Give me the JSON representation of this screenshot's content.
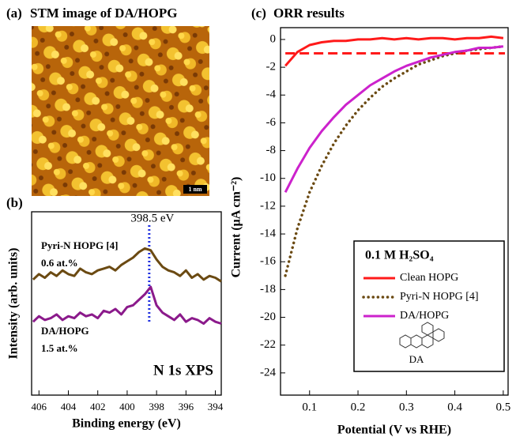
{
  "stm_image": {
    "panel_label": "(a)",
    "title": "STM image of DA/HOPG",
    "scale_label": "1 nm"
  },
  "chart_data": [
    {
      "type": "line",
      "panel_label": "(b)",
      "title": "N 1s XPS",
      "xlabel": "Binding energy (eV)",
      "ylabel": "Intensity (arb. units)",
      "xlim": [
        406.5,
        393.6
      ],
      "ylim": [
        0,
        10
      ],
      "xticks": [
        406,
        404,
        402,
        400,
        398,
        396,
        394
      ],
      "x": [
        406.4,
        406.0,
        405.6,
        405.2,
        404.8,
        404.4,
        404.0,
        403.6,
        403.2,
        402.8,
        402.4,
        402.0,
        401.6,
        401.2,
        400.8,
        400.4,
        400.0,
        399.6,
        399.2,
        398.8,
        398.4,
        398.0,
        397.6,
        397.2,
        396.8,
        396.4,
        396.0,
        395.6,
        395.2,
        394.8,
        394.4,
        394.0,
        393.6
      ],
      "series": [
        {
          "name": "Pyri-N HOPG [4]",
          "note": "0.6 at.%",
          "color": "#6b4a12",
          "style": "solid",
          "values": [
            6.3,
            6.6,
            6.4,
            6.7,
            6.5,
            6.8,
            6.6,
            6.5,
            6.9,
            6.7,
            6.6,
            6.8,
            6.9,
            7.0,
            6.8,
            7.1,
            7.3,
            7.5,
            7.8,
            8.0,
            7.9,
            7.4,
            7.0,
            6.8,
            6.7,
            6.5,
            6.8,
            6.4,
            6.6,
            6.3,
            6.5,
            6.4,
            6.2
          ]
        },
        {
          "name": "DA/HOPG",
          "note": "1.5 at.%",
          "color": "#8b1a8b",
          "style": "solid",
          "values": [
            4.0,
            4.3,
            4.1,
            4.2,
            4.4,
            4.1,
            4.3,
            4.2,
            4.5,
            4.3,
            4.4,
            4.2,
            4.6,
            4.5,
            4.7,
            4.4,
            4.8,
            4.9,
            5.2,
            5.5,
            5.9,
            4.9,
            4.5,
            4.3,
            4.1,
            4.4,
            4.0,
            4.2,
            4.1,
            3.9,
            4.2,
            4.0,
            3.9
          ]
        }
      ],
      "vline": {
        "value": 398.5,
        "label": "398.5 eV",
        "color": "#1f2fe0"
      }
    },
    {
      "type": "line",
      "panel_label": "(c)",
      "title": "ORR results",
      "xlabel": "Potential (V vs RHE)",
      "ylabel": "Current (μA cm⁻²)",
      "xlim": [
        0.04,
        0.51
      ],
      "ylim": [
        -25.6,
        0.85
      ],
      "xticks": [
        0.1,
        0.2,
        0.3,
        0.4,
        0.5
      ],
      "yticks": [
        0,
        -2,
        -4,
        -6,
        -8,
        -10,
        -12,
        -14,
        -16,
        -18,
        -20,
        -22,
        -24
      ],
      "x": [
        0.05,
        0.075,
        0.1,
        0.125,
        0.15,
        0.175,
        0.2,
        0.225,
        0.25,
        0.275,
        0.3,
        0.325,
        0.35,
        0.375,
        0.4,
        0.425,
        0.45,
        0.475,
        0.5
      ],
      "series": [
        {
          "name": "Clean HOPG",
          "color": "#ff1a1a",
          "style": "solid",
          "values": [
            -1.9,
            -0.9,
            -0.4,
            -0.2,
            -0.1,
            -0.1,
            0,
            0,
            0.1,
            0,
            0.1,
            0,
            0.1,
            0.1,
            0,
            0.1,
            0.1,
            0.2,
            0.1
          ]
        },
        {
          "name": "Pyri-N HOPG [4]",
          "color": "#6b4a12",
          "style": "dotted",
          "values": [
            -17,
            -13.6,
            -11,
            -9.1,
            -7.5,
            -6.2,
            -5.1,
            -4.2,
            -3.4,
            -2.8,
            -2.3,
            -1.8,
            -1.5,
            -1.2,
            -1,
            -0.8,
            -0.7,
            -0.6,
            -0.5
          ]
        },
        {
          "name": "DA/HOPG",
          "color": "#cc22cc",
          "style": "solid",
          "values": [
            -11,
            -9.3,
            -7.8,
            -6.6,
            -5.6,
            -4.7,
            -4,
            -3.3,
            -2.8,
            -2.3,
            -1.9,
            -1.6,
            -1.3,
            -1.1,
            -0.9,
            -0.8,
            -0.6,
            -0.6,
            -0.5
          ]
        }
      ],
      "hline": {
        "value": -1,
        "color": "#ff1a1a"
      },
      "legend_title": "0.1 M H₂SO₄",
      "legend_note": "DA"
    }
  ]
}
